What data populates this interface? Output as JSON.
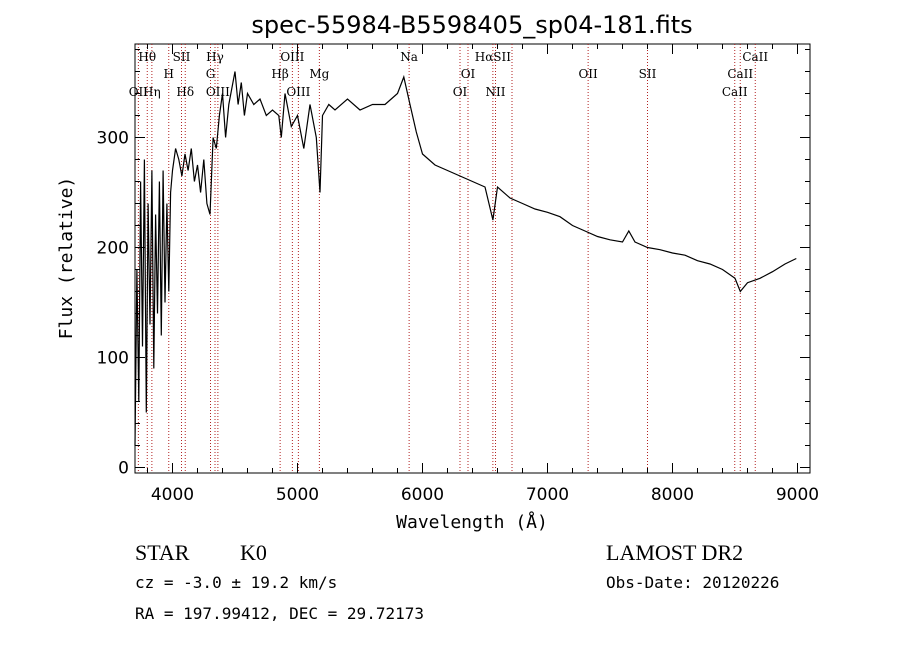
{
  "chart_data": {
    "type": "line",
    "title": "spec-55984-B5598405_sp04-181.fits",
    "xlabel": "Wavelength (Å)",
    "ylabel": "Flux (relative)",
    "xlim": [
      3700,
      9100
    ],
    "ylim": [
      -5,
      385
    ],
    "xticks": [
      4000,
      5000,
      6000,
      7000,
      8000,
      9000
    ],
    "yticks": [
      0,
      100,
      200,
      300
    ],
    "line_color": "#000000",
    "marker_color": "#b22222",
    "series": [
      {
        "name": "spectrum",
        "x": [
          3700,
          3715,
          3730,
          3745,
          3760,
          3775,
          3790,
          3805,
          3820,
          3835,
          3850,
          3865,
          3880,
          3895,
          3910,
          3925,
          3940,
          3955,
          3970,
          3985,
          4000,
          4025,
          4050,
          4075,
          4100,
          4125,
          4150,
          4175,
          4200,
          4225,
          4250,
          4275,
          4300,
          4325,
          4350,
          4375,
          4400,
          4425,
          4450,
          4475,
          4500,
          4525,
          4550,
          4575,
          4600,
          4650,
          4700,
          4750,
          4800,
          4850,
          4870,
          4900,
          4950,
          5000,
          5050,
          5100,
          5150,
          5180,
          5200,
          5250,
          5300,
          5400,
          5500,
          5600,
          5700,
          5800,
          5850,
          5900,
          5950,
          6000,
          6100,
          6200,
          6300,
          6400,
          6500,
          6563,
          6600,
          6700,
          6800,
          6900,
          7000,
          7100,
          7200,
          7300,
          7400,
          7500,
          7600,
          7650,
          7700,
          7800,
          7900,
          8000,
          8100,
          8200,
          8300,
          8400,
          8500,
          8542,
          8600,
          8700,
          8800,
          8900,
          8990
        ],
        "y": [
          20,
          180,
          60,
          260,
          110,
          280,
          50,
          240,
          130,
          270,
          90,
          230,
          140,
          260,
          120,
          270,
          150,
          240,
          160,
          250,
          270,
          290,
          280,
          265,
          285,
          270,
          290,
          260,
          275,
          250,
          280,
          240,
          230,
          300,
          290,
          320,
          340,
          300,
          330,
          345,
          360,
          330,
          350,
          320,
          340,
          330,
          335,
          320,
          325,
          320,
          300,
          340,
          310,
          320,
          290,
          330,
          300,
          250,
          320,
          330,
          325,
          335,
          325,
          330,
          330,
          340,
          355,
          330,
          305,
          285,
          275,
          270,
          265,
          260,
          255,
          225,
          255,
          245,
          240,
          235,
          232,
          228,
          220,
          215,
          210,
          207,
          205,
          215,
          205,
          200,
          198,
          195,
          193,
          188,
          185,
          180,
          172,
          160,
          168,
          172,
          178,
          185,
          190
        ]
      }
    ],
    "lines": [
      {
        "name": "Hθ",
        "x": 3798,
        "row": 1
      },
      {
        "name": "OII",
        "x": 3727,
        "row": 3
      },
      {
        "name": "Hη",
        "x": 3835,
        "row": 3
      },
      {
        "name": "SII",
        "x": 4072,
        "row": 1
      },
      {
        "name": "H",
        "x": 3970,
        "row": 2
      },
      {
        "name": "Hδ",
        "x": 4102,
        "row": 3
      },
      {
        "name": "Hγ",
        "x": 4340,
        "row": 1
      },
      {
        "name": "G",
        "x": 4304,
        "row": 2
      },
      {
        "name": "OIII",
        "x": 4363,
        "row": 3
      },
      {
        "name": "OIII",
        "x": 4959,
        "row": 1
      },
      {
        "name": "Hβ",
        "x": 4861,
        "row": 2
      },
      {
        "name": "OIII",
        "x": 5007,
        "row": 3
      },
      {
        "name": "Mg",
        "x": 5175,
        "row": 2
      },
      {
        "name": "Na",
        "x": 5893,
        "row": 1
      },
      {
        "name": "OI",
        "x": 6364,
        "row": 2
      },
      {
        "name": "OI",
        "x": 6300,
        "row": 3
      },
      {
        "name": "HαSII",
        "x": 6563,
        "row": 1
      },
      {
        "name": "NII",
        "x": 6584,
        "row": 3
      },
      {
        "name": "OII",
        "x": 7325,
        "row": 2
      },
      {
        "name": "SII",
        "x": 7800,
        "row": 2
      },
      {
        "name": "CaII",
        "x": 8662,
        "row": 1
      },
      {
        "name": "CaII",
        "x": 8542,
        "row": 2
      },
      {
        "name": "CaII",
        "x": 8498,
        "row": 3
      }
    ],
    "marker_x": [
      3727,
      3798,
      3835,
      3970,
      4072,
      4102,
      4304,
      4340,
      4363,
      4861,
      4959,
      5007,
      5175,
      5893,
      6300,
      6364,
      6563,
      6584,
      6716,
      7325,
      7800,
      8498,
      8542,
      8662
    ]
  },
  "info": {
    "object_type": "STAR",
    "subclass": "K0",
    "survey": "LAMOST DR2",
    "redshift": "cz = -3.0 ± 19.2 km/s",
    "obs_date": "Obs-Date: 20120226",
    "coords": "RA = 197.99412, DEC =  29.72173"
  }
}
